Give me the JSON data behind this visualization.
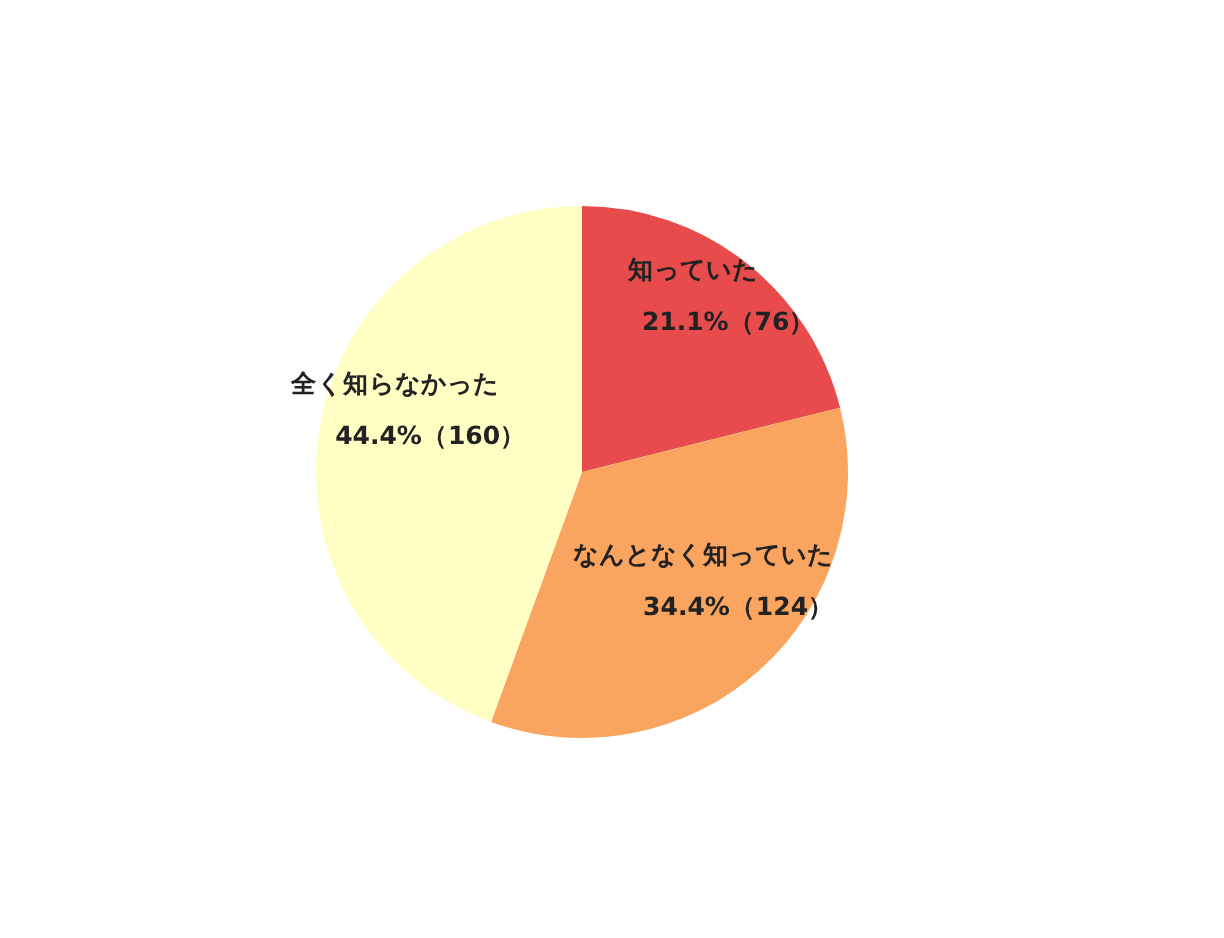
{
  "chart_data": {
    "type": "pie",
    "categories": [
      "知っていた",
      "なんとなく知っていた",
      "全く知らなかった"
    ],
    "values": [
      76,
      124,
      160
    ],
    "colors": [
      "#e84b4b",
      "#f9a45f",
      "#ffffc4"
    ],
    "value_labels": [
      "21.1%（76）",
      "34.4%（124）",
      "44.4%（160）"
    ]
  }
}
